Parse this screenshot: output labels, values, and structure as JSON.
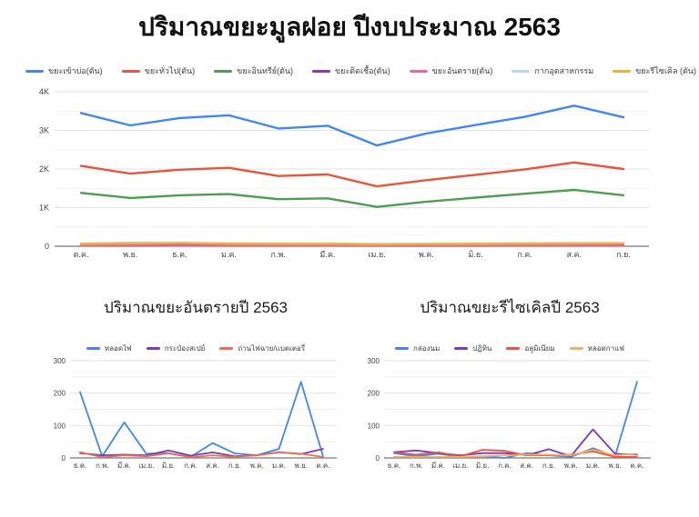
{
  "page": {
    "title": "ปริมาณขยะมูลฝอย ปีงบประมาณ 2563"
  },
  "chart_data": [
    {
      "id": "main-chart",
      "type": "line",
      "title": "ปริมาณขยะมูลฝอย ปีงบประมาณ 2563",
      "legend_position": "top",
      "grid": true,
      "categories": [
        "ต.ค.",
        "พ.ย.",
        "ธ.ค.",
        "ม.ค.",
        "ก.พ.",
        "มี.ค.",
        "เม.ย.",
        "พ.ค.",
        "มิ.ย.",
        "ก.ค.",
        "ส.ค.",
        "ก.ย."
      ],
      "ylim": [
        0,
        4000
      ],
      "yticks": [
        {
          "value": 0,
          "label": "0"
        },
        {
          "value": 1000,
          "label": "1K"
        },
        {
          "value": 2000,
          "label": "2K"
        },
        {
          "value": 3000,
          "label": "3K"
        },
        {
          "value": 4000,
          "label": "4K"
        }
      ],
      "minor_tick_step": 500,
      "series": [
        {
          "name": "ขยะเข้าบ่อ(ตัน)",
          "color": "#4285F4",
          "values": [
            3450,
            3130,
            3320,
            3390,
            3050,
            3120,
            2610,
            2920,
            3140,
            3350,
            3640,
            3340
          ]
        },
        {
          "name": "ขยะทั่วไป(ตัน)",
          "color": "#E8553C",
          "values": [
            2080,
            1880,
            1980,
            2030,
            1820,
            1860,
            1550,
            1710,
            1850,
            1990,
            2170,
            2000
          ]
        },
        {
          "name": "ขยะอินทรีย์(ตัน)",
          "color": "#4E9D52",
          "values": [
            1380,
            1250,
            1320,
            1350,
            1220,
            1240,
            1020,
            1150,
            1260,
            1360,
            1460,
            1320
          ]
        },
        {
          "name": "ขยะติดเชื้อ(ตัน)",
          "color": "#8E35B5",
          "values": [
            30,
            30,
            35,
            30,
            30,
            30,
            25,
            25,
            30,
            30,
            35,
            30
          ]
        },
        {
          "name": "ขยะอันตราย(ตัน)",
          "color": "#F0649C",
          "values": [
            15,
            10,
            15,
            10,
            10,
            15,
            10,
            10,
            10,
            15,
            15,
            15
          ]
        },
        {
          "name": "กากอุตสาหกรรม",
          "color": "#AEDCEE",
          "values": [
            70,
            95,
            90,
            75,
            70,
            70,
            60,
            65,
            70,
            80,
            85,
            80
          ]
        },
        {
          "name": "ขยะรีไซเคิล (ตัน)",
          "color": "#F2B32C",
          "values": [
            60,
            70,
            80,
            65,
            60,
            60,
            50,
            55,
            60,
            65,
            70,
            75
          ]
        }
      ]
    },
    {
      "id": "hazardous-chart",
      "type": "line",
      "title": "ปริมาณขยะอันตรายปี 2563",
      "legend_position": "top",
      "grid": true,
      "categories": [
        "ธ.ค.",
        "ก.พ.",
        "มี.ค.",
        "เม.ย.",
        "มิ.ย.",
        "ก.ค.",
        "ส.ค.",
        "ก.ย.",
        "พ.ค.",
        "ม.ค.",
        "พ.ย.",
        "ต.ค."
      ],
      "ylim": [
        0,
        300
      ],
      "yticks": [
        {
          "value": 0,
          "label": "0"
        },
        {
          "value": 100,
          "label": "100"
        },
        {
          "value": 200,
          "label": "200"
        },
        {
          "value": 300,
          "label": "300"
        }
      ],
      "minor_tick_step": 50,
      "series": [
        {
          "name": "หลอดไฟ",
          "color": "#4285F4",
          "values": [
            203,
            5,
            110,
            13,
            15,
            3,
            46,
            14,
            8,
            28,
            235,
            5
          ]
        },
        {
          "name": "กระป๋องสเปย์",
          "color": "#7D3AB5",
          "values": [
            15,
            8,
            10,
            8,
            23,
            7,
            17,
            5,
            8,
            18,
            12,
            28
          ]
        },
        {
          "name": "ถ่านไฟฉาย/แบตเตอรี่",
          "color": "#EE7049",
          "values": [
            18,
            2,
            8,
            5,
            14,
            2,
            8,
            3,
            8,
            17,
            13,
            3
          ]
        }
      ]
    },
    {
      "id": "recycle-chart",
      "type": "line",
      "title": "ปริมาณขยะรีไซเคิลปี 2563",
      "legend_position": "top",
      "grid": true,
      "categories": [
        "ธ.ค.",
        "ก.พ.",
        "มี.ค.",
        "เม.ย.",
        "มิ.ย.",
        "ก.ค.",
        "ส.ค.",
        "ก.ย.",
        "พ.ค.",
        "ม.ค.",
        "พ.ย.",
        "ต.ค."
      ],
      "ylim": [
        0,
        300
      ],
      "yticks": [
        {
          "value": 0,
          "label": "0"
        },
        {
          "value": 100,
          "label": "100"
        },
        {
          "value": 200,
          "label": "200"
        },
        {
          "value": 300,
          "label": "300"
        }
      ],
      "minor_tick_step": 50,
      "series": [
        {
          "name": "กล่องนม",
          "color": "#4285F4",
          "values": [
            15,
            5,
            13,
            3,
            5,
            0,
            15,
            8,
            3,
            30,
            5,
            235
          ]
        },
        {
          "name": "ปฏิทิน",
          "color": "#7D3AB5",
          "values": [
            18,
            23,
            15,
            8,
            15,
            15,
            8,
            27,
            5,
            88,
            13,
            10
          ]
        },
        {
          "name": "อลูมิเนียม",
          "color": "#E8553C",
          "values": [
            17,
            10,
            17,
            5,
            25,
            22,
            8,
            8,
            10,
            20,
            3,
            3
          ]
        },
        {
          "name": "หลอดกาแฟ",
          "color": "#F8AF5B",
          "values": [
            3,
            3,
            3,
            3,
            5,
            8,
            10,
            10,
            8,
            25,
            8,
            13
          ]
        }
      ]
    }
  ]
}
